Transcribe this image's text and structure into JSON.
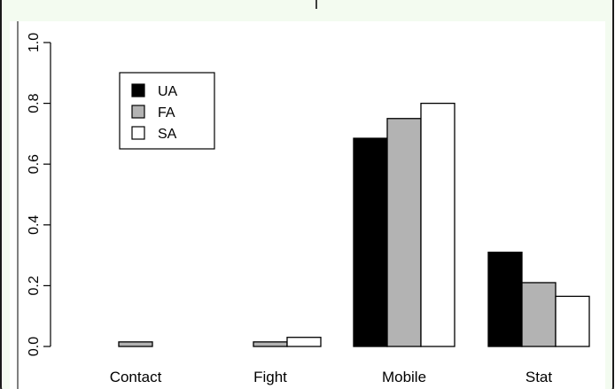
{
  "chart_data": {
    "type": "bar",
    "categories": [
      "Contact",
      "Fight",
      "Mobile",
      "Stat"
    ],
    "series": [
      {
        "name": "UA",
        "values": [
          0.0,
          0.0,
          0.685,
          0.31
        ],
        "color": "#000000"
      },
      {
        "name": "FA",
        "values": [
          0.015,
          0.015,
          0.75,
          0.21
        ],
        "color": "#b3b3b3"
      },
      {
        "name": "SA",
        "values": [
          0.0,
          0.03,
          0.8,
          0.165
        ],
        "color": "#ffffff"
      }
    ],
    "yticks": [
      "0.0",
      "0.2",
      "0.4",
      "0.6",
      "0.8",
      "1.0"
    ],
    "ylim": [
      0,
      1.0
    ],
    "grid": false,
    "legend_position": "top-left",
    "title": "",
    "xlabel": "",
    "ylabel": ""
  },
  "colors": {
    "panel_border": "#1a1a1a",
    "panel_background": "#f3fbf0",
    "header_background": "#ffffff"
  }
}
